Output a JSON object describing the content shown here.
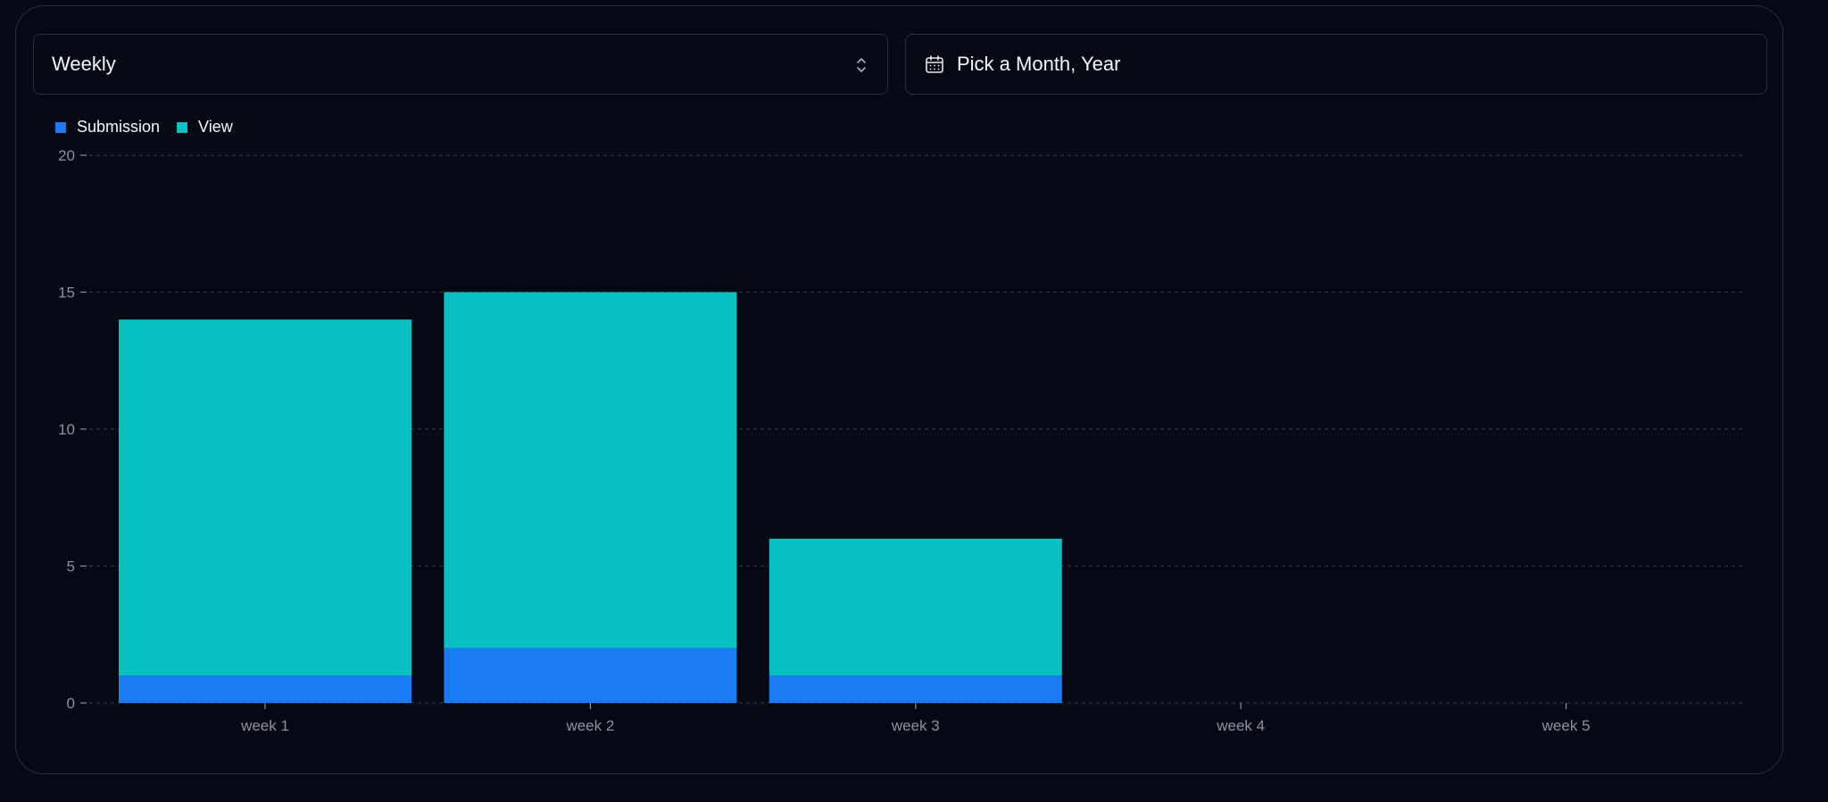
{
  "controls": {
    "period_select": "Weekly",
    "date_picker_placeholder": "Pick a Month, Year"
  },
  "colors": {
    "submission": "#1a7cf5",
    "view": "#08bfc1",
    "grid": "#2e3542",
    "axis_text": "#8b919e"
  },
  "chart_data": {
    "type": "bar",
    "stacked": true,
    "categories": [
      "week 1",
      "week 2",
      "week 3",
      "week 4",
      "week 5"
    ],
    "series": [
      {
        "name": "Submission",
        "values": [
          1,
          2,
          1,
          0,
          0
        ]
      },
      {
        "name": "View",
        "values": [
          13,
          13,
          5,
          0,
          0
        ]
      }
    ],
    "title": "",
    "xlabel": "",
    "ylabel": "",
    "ylim": [
      0,
      20
    ],
    "yticks": [
      0,
      5,
      10,
      15,
      20
    ],
    "grid": "horizontal-dashed",
    "legend": "top-left"
  }
}
